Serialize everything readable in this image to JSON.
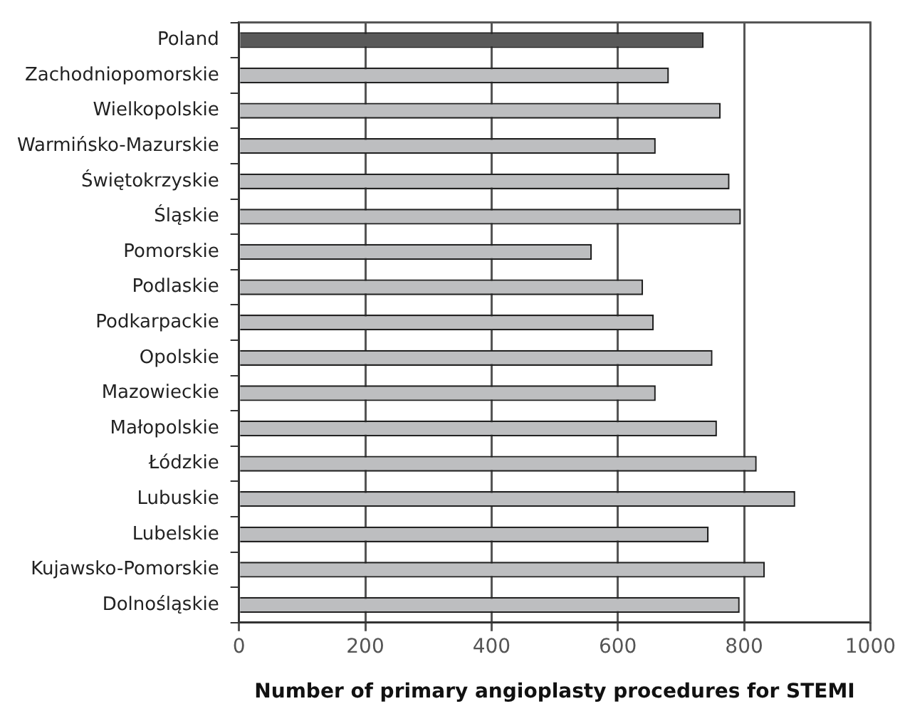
{
  "chart_data": {
    "type": "bar",
    "orientation": "horizontal",
    "xlabel": "Number of primary angioplasty procedures for STEMI",
    "categories": [
      "Poland",
      "Zachodniopomorskie",
      "Wielkopolskie",
      "Warmińsko-Mazurskie",
      "Świętokrzyskie",
      "Śląskie",
      "Pomorskie",
      "Podlaskie",
      "Podkarpackie",
      "Opolskie",
      "Mazowieckie",
      "Małopolskie",
      "Łódzkie",
      "Lubuskie",
      "Lubelskie",
      "Kujawsko-Pomorskie",
      "Dolnośląskie"
    ],
    "values": [
      736,
      681,
      763,
      660,
      777,
      795,
      559,
      640,
      657,
      750,
      660,
      757,
      820,
      881,
      744,
      833,
      793
    ],
    "colors": [
      "#595959",
      "#bdbec0",
      "#bdbec0",
      "#bdbec0",
      "#bdbec0",
      "#bdbec0",
      "#bdbec0",
      "#bdbec0",
      "#bdbec0",
      "#bdbec0",
      "#bdbec0",
      "#bdbec0",
      "#bdbec0",
      "#bdbec0",
      "#bdbec0",
      "#bdbec0",
      "#bdbec0"
    ],
    "xlim": [
      0,
      1000
    ],
    "xticks": [
      0,
      200,
      400,
      600,
      800,
      1000
    ],
    "grid": "x",
    "legend": false
  }
}
